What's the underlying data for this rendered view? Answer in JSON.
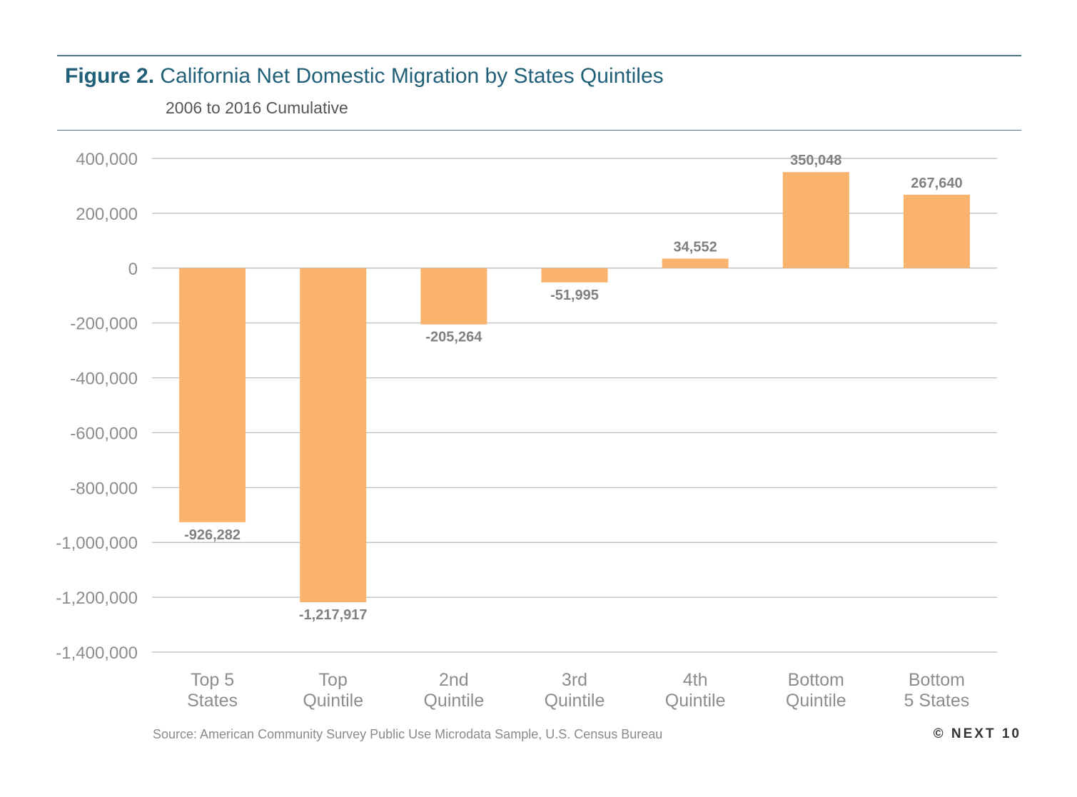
{
  "header": {
    "figure_label": "Figure 2.",
    "title": "California Net Domestic Migration by States Quintiles",
    "subtitle": "2006 to 2016 Cumulative"
  },
  "footer": {
    "source": "Source: American Community Survey Public Use Microdata Sample, U.S. Census Bureau",
    "copyright": "© NEXT 10"
  },
  "colors": {
    "bar": "#f9b36d",
    "grid": "#b8b8b8",
    "tick_label": "#8c8c8c",
    "data_label": "#808080",
    "category_label": "#8c8c8c"
  },
  "chart_data": {
    "type": "bar",
    "title": "California Net Domestic Migration by States Quintiles",
    "subtitle": "2006 to 2016 Cumulative",
    "categories": [
      [
        "Top 5",
        "States"
      ],
      [
        "Top",
        "Quintile"
      ],
      [
        "2nd",
        "Quintile"
      ],
      [
        "3rd",
        "Quintile"
      ],
      [
        "4th",
        "Quintile"
      ],
      [
        "Bottom",
        "Quintile"
      ],
      [
        "Bottom",
        "5 States"
      ]
    ],
    "values": [
      -926282,
      -1217917,
      -205264,
      -51995,
      34552,
      350048,
      267640
    ],
    "value_labels": [
      "-926,282",
      "-1,217,917",
      "-205,264",
      "-51,995",
      "34,552",
      "350,048",
      "267,640"
    ],
    "ylim": [
      -1400000,
      400000
    ],
    "yticks": [
      400000,
      200000,
      0,
      -200000,
      -400000,
      -600000,
      -800000,
      -1000000,
      -1200000,
      -1400000
    ],
    "ytick_labels": [
      "400,000",
      "200,000",
      "0",
      "-200,000",
      "-400,000",
      "-600,000",
      "-800,000",
      "-1,000,000",
      "-1,200,000",
      "-1,400,000"
    ],
    "grid": true,
    "legend": "none"
  }
}
